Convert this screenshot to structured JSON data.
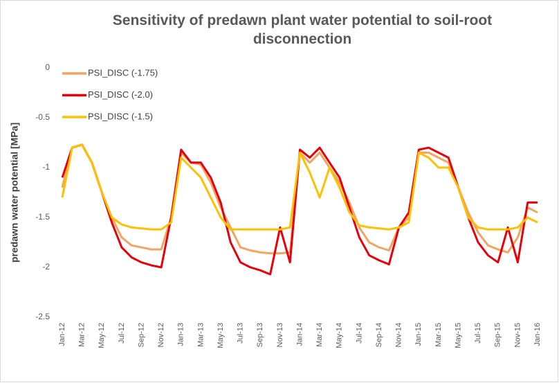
{
  "chart_data": {
    "type": "line",
    "title": "Sensitivity of predawn plant water potential to soil-root disconnection",
    "y_label": "predawn water potential [MPa]",
    "categories": [
      "Jan-12",
      null,
      "Mar-12",
      null,
      "May-12",
      null,
      "Jul-12",
      null,
      "Sep-12",
      null,
      "Nov-12",
      null,
      "Jan-13",
      null,
      "Mar-13",
      null,
      "May-13",
      null,
      "Jul-13",
      null,
      "Sep-13",
      null,
      "Nov-13",
      null,
      "Jan-14",
      null,
      "Mar-14",
      null,
      "May-14",
      null,
      "Jul-14",
      null,
      "Sep-14",
      null,
      "Nov-14",
      null,
      "Jan-15",
      null,
      "Mar-15",
      null,
      "May-15",
      null,
      "Jul-15",
      null,
      "Sep-15",
      null,
      "Nov-15",
      null,
      "Jan-16"
    ],
    "series": [
      {
        "name": "PSI_DISC (-1.75)",
        "color": "#f4a460",
        "values": [
          -1.2,
          -0.8,
          -0.77,
          -0.95,
          -1.25,
          -1.5,
          -1.7,
          -1.78,
          -1.8,
          -1.82,
          -1.82,
          -1.5,
          -0.85,
          -0.95,
          -0.97,
          -1.15,
          -1.4,
          -1.6,
          -1.8,
          -1.83,
          -1.85,
          -1.86,
          -1.86,
          -1.85,
          -0.85,
          -0.95,
          -0.85,
          -1.0,
          -1.15,
          -1.35,
          -1.6,
          -1.75,
          -1.8,
          -1.83,
          -1.6,
          -1.5,
          -0.85,
          -0.85,
          -0.9,
          -0.95,
          -1.2,
          -1.45,
          -1.65,
          -1.78,
          -1.82,
          -1.85,
          -1.7,
          -1.4,
          -1.45
        ]
      },
      {
        "name": "PSI_DISC (-2.0)",
        "color": "#e8000b",
        "values": [
          -1.1,
          -0.8,
          -0.77,
          -0.95,
          -1.25,
          -1.55,
          -1.8,
          -1.9,
          -1.95,
          -1.98,
          -2.0,
          -1.5,
          -0.82,
          -0.95,
          -0.95,
          -1.1,
          -1.35,
          -1.75,
          -1.95,
          -2.0,
          -2.03,
          -2.07,
          -1.6,
          -1.95,
          -0.82,
          -0.9,
          -0.8,
          -0.95,
          -1.1,
          -1.4,
          -1.7,
          -1.88,
          -1.93,
          -1.97,
          -1.6,
          -1.45,
          -0.82,
          -0.8,
          -0.85,
          -0.9,
          -1.2,
          -1.5,
          -1.75,
          -1.88,
          -1.95,
          -1.6,
          -1.95,
          -1.35,
          -1.35
        ]
      },
      {
        "name": "PSI_DISC (-1.5)",
        "color": "#ffc000",
        "values": [
          -1.3,
          -0.8,
          -0.77,
          -0.95,
          -1.25,
          -1.5,
          -1.57,
          -1.6,
          -1.61,
          -1.62,
          -1.62,
          -1.55,
          -0.9,
          -1.0,
          -1.1,
          -1.3,
          -1.5,
          -1.62,
          -1.62,
          -1.62,
          -1.62,
          -1.62,
          -1.62,
          -1.6,
          -0.85,
          -1.05,
          -1.3,
          -1.0,
          -1.2,
          -1.45,
          -1.58,
          -1.6,
          -1.61,
          -1.62,
          -1.6,
          -1.55,
          -0.85,
          -0.9,
          -1.0,
          -1.0,
          -1.2,
          -1.5,
          -1.6,
          -1.62,
          -1.62,
          -1.62,
          -1.6,
          -1.5,
          -1.55
        ]
      }
    ],
    "ylim": [
      -2.5,
      0
    ],
    "yticks": [
      0,
      -0.5,
      -1,
      -1.5,
      -2,
      -2.5
    ],
    "grid": false,
    "legend": "top-left"
  }
}
